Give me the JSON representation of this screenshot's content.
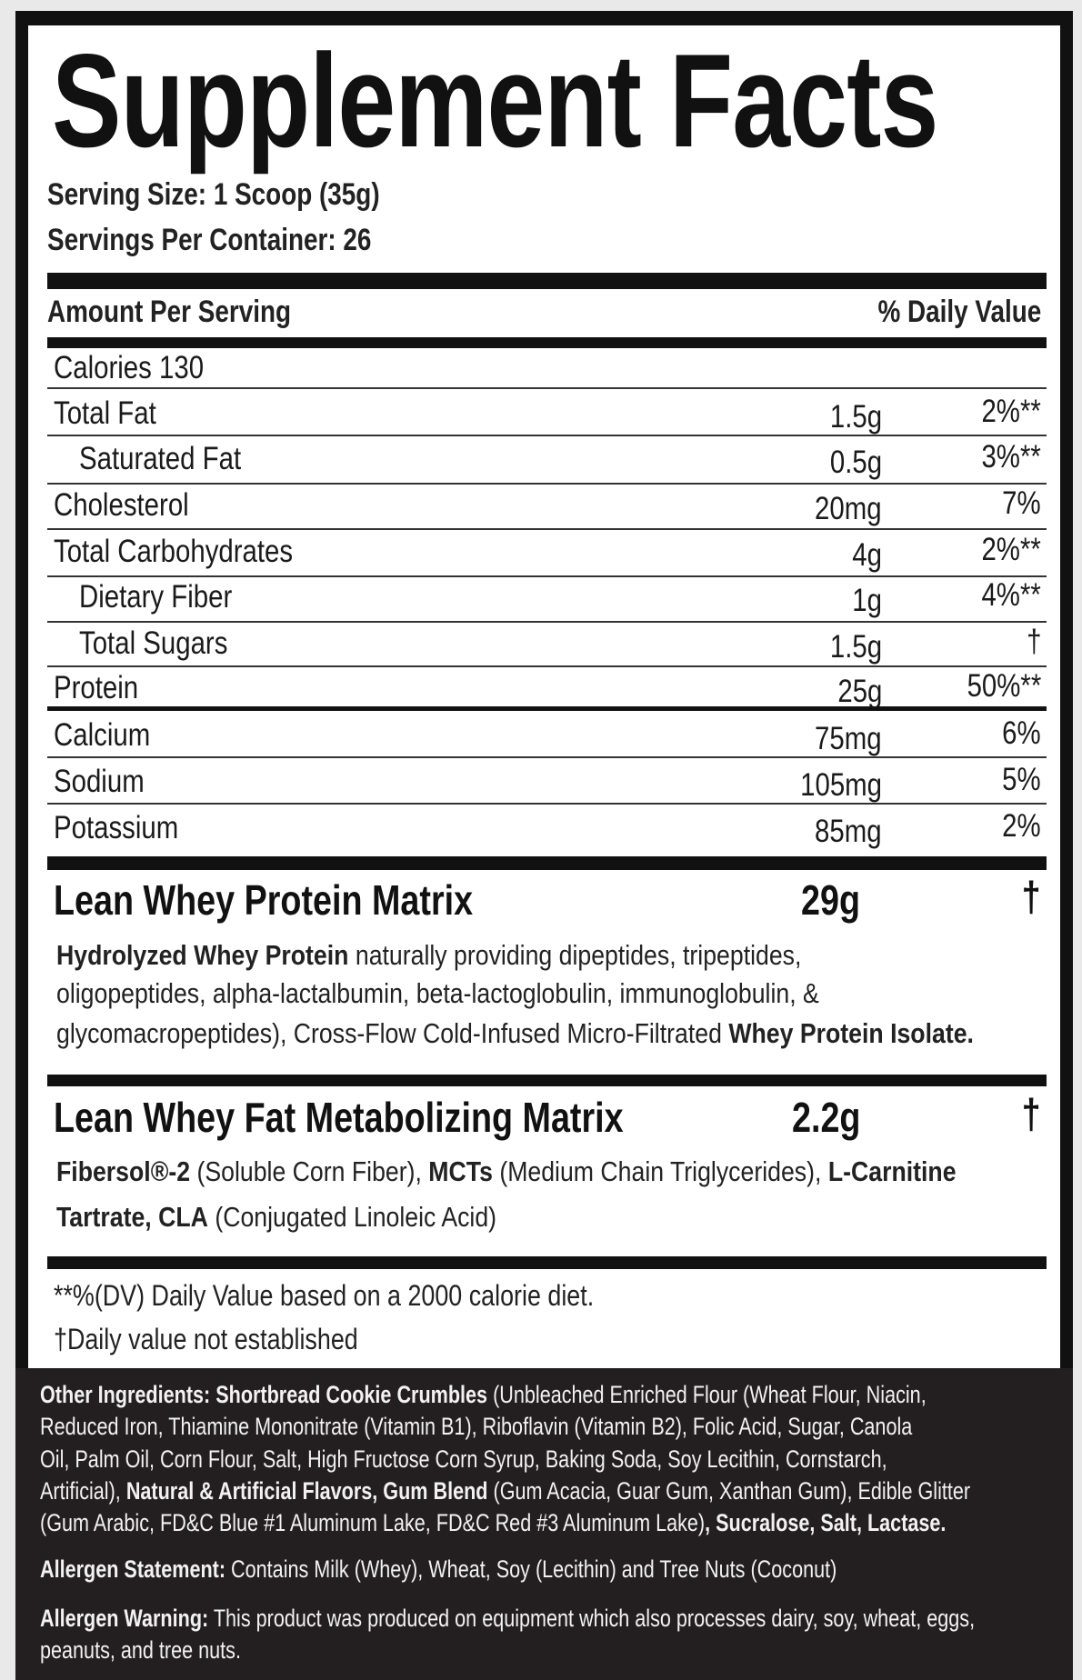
{
  "title": "Supplement Facts",
  "serving_size": "Serving Size: 1 Scoop (35g)",
  "servings_per_container": "Servings Per Container: 26",
  "header": {
    "amount": "Amount Per Serving",
    "dv": "% Daily Value"
  },
  "calories": "Calories 130",
  "nutrients": [
    {
      "name": "Total Fat",
      "amount": "1.5g",
      "dv": "2%**",
      "indent": false
    },
    {
      "name": "Saturated Fat",
      "amount": "0.5g",
      "dv": "3%**",
      "indent": true
    },
    {
      "name": "Cholesterol",
      "amount": "20mg",
      "dv": "7%",
      "indent": false
    },
    {
      "name": "Total Carbohydrates",
      "amount": "4g",
      "dv": "2%**",
      "indent": false
    },
    {
      "name": "Dietary Fiber",
      "amount": "1g",
      "dv": "4%**",
      "indent": true
    },
    {
      "name": "Total Sugars",
      "amount": "1.5g",
      "dv": "†",
      "indent": true
    },
    {
      "name": "Protein",
      "amount": "25g",
      "dv": "50%**",
      "indent": false
    },
    {
      "name": "Calcium",
      "amount": "75mg",
      "dv": "6%",
      "indent": false
    },
    {
      "name": "Sodium",
      "amount": "105mg",
      "dv": "5%",
      "indent": false
    },
    {
      "name": "Potassium",
      "amount": "85mg",
      "dv": "2%",
      "indent": false
    }
  ],
  "blends": [
    {
      "name": "Lean Whey Protein Matrix",
      "amount": "29g",
      "dv": "†",
      "lines": [
        [
          {
            "b": "Hydrolyzed Whey Protein"
          },
          {
            "n": " naturally providing dipeptides, tripeptides,"
          }
        ],
        [
          {
            "n": "oligopeptides, alpha-lactalbumin, beta-lactoglobulin, immunoglobulin, &"
          }
        ],
        [
          {
            "n": "glycomacropeptides), Cross-Flow Cold-Infused Micro-Filtrated "
          },
          {
            "b": "Whey Protein Isolate."
          }
        ]
      ]
    },
    {
      "name": "Lean Whey Fat Metabolizing Matrix",
      "amount": "2.2g",
      "dv": "†",
      "lines": [
        [
          {
            "b": "Fibersol®-2"
          },
          {
            "n": " (Soluble Corn Fiber), "
          },
          {
            "b": "MCTs"
          },
          {
            "n": " (Medium Chain Triglycerides), "
          },
          {
            "b": "L-Carnitine"
          }
        ],
        [
          {
            "b": "Tartrate, CLA"
          },
          {
            "n": " (Conjugated Linoleic Acid)"
          }
        ]
      ]
    }
  ],
  "footnotes": [
    "**%(DV) Daily Value based on a 2000 calorie diet.",
    "†Daily value not established"
  ],
  "other_ingredients": [
    [
      {
        "b": "Other Ingredients:  Shortbread Cookie Crumbles"
      },
      {
        "n": " (Unbleached Enriched Flour (Wheat Flour, Niacin,"
      }
    ],
    [
      {
        "n": "Reduced Iron, Thiamine Mononitrate (Vitamin B1), Riboflavin (Vitamin B2), Folic Acid, Sugar, Canola"
      }
    ],
    [
      {
        "n": "Oil, Palm Oil, Corn Flour, Salt, High Fructose Corn Syrup, Baking Soda, Soy Lecithin, Cornstarch,"
      }
    ],
    [
      {
        "n": "Artificial), "
      },
      {
        "b": "Natural & Artificial Flavors, Gum Blend"
      },
      {
        "n": " (Gum Acacia, Guar Gum, Xanthan Gum), Edible Glitter"
      }
    ],
    [
      {
        "n": "(Gum Arabic, FD&C Blue #1 Aluminum Lake, FD&C Red #3 Aluminum Lake)"
      },
      {
        "b": ", Sucralose, Salt, Lactase."
      }
    ]
  ],
  "allergen_statement": [
    [
      {
        "b": "Allergen Statement:"
      },
      {
        "n": " Contains Milk (Whey), Wheat, Soy (Lecithin) and Tree Nuts (Coconut)"
      }
    ]
  ],
  "allergen_warning": [
    [
      {
        "b": "Allergen Warning:"
      },
      {
        "n": " This product was produced on equipment which also processes dairy, soy, wheat, eggs,"
      }
    ],
    [
      {
        "n": "peanuts, and tree nuts."
      }
    ]
  ],
  "colors": {
    "ink": "#111111",
    "dark_panel": "#231f20",
    "panel": "#ffffff"
  }
}
